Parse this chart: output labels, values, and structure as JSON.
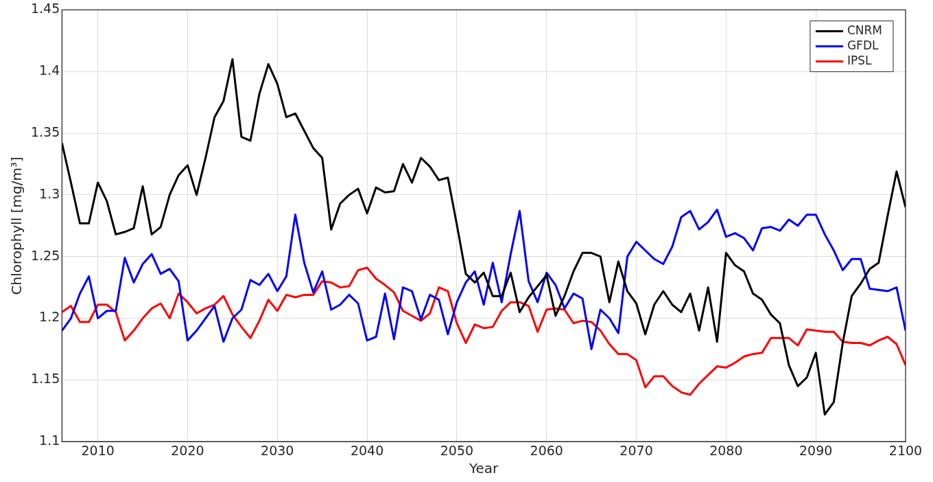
{
  "chart_data": {
    "type": "line",
    "xlabel": "Year",
    "ylabel": "Chlorophyll [mg/m³]",
    "x": [
      2006,
      2007,
      2008,
      2009,
      2010,
      2011,
      2012,
      2013,
      2014,
      2015,
      2016,
      2017,
      2018,
      2019,
      2020,
      2021,
      2022,
      2023,
      2024,
      2025,
      2026,
      2027,
      2028,
      2029,
      2030,
      2031,
      2032,
      2033,
      2034,
      2035,
      2036,
      2037,
      2038,
      2039,
      2040,
      2041,
      2042,
      2043,
      2044,
      2045,
      2046,
      2047,
      2048,
      2049,
      2050,
      2051,
      2052,
      2053,
      2054,
      2055,
      2056,
      2057,
      2058,
      2059,
      2060,
      2061,
      2062,
      2063,
      2064,
      2065,
      2066,
      2067,
      2068,
      2069,
      2070,
      2071,
      2072,
      2073,
      2074,
      2075,
      2076,
      2077,
      2078,
      2079,
      2080,
      2081,
      2082,
      2083,
      2084,
      2085,
      2086,
      2087,
      2088,
      2089,
      2090,
      2091,
      2092,
      2093,
      2094,
      2095,
      2096,
      2097,
      2098,
      2099,
      2100
    ],
    "series": [
      {
        "name": "CNRM",
        "color": "#000000",
        "values": [
          1.342,
          1.31,
          1.277,
          1.277,
          1.31,
          1.295,
          1.268,
          1.27,
          1.273,
          1.307,
          1.268,
          1.274,
          1.3,
          1.316,
          1.324,
          1.3,
          1.33,
          1.363,
          1.376,
          1.41,
          1.347,
          1.344,
          1.382,
          1.406,
          1.39,
          1.363,
          1.366,
          1.352,
          1.338,
          1.33,
          1.272,
          1.293,
          1.3,
          1.305,
          1.285,
          1.306,
          1.302,
          1.303,
          1.325,
          1.31,
          1.33,
          1.323,
          1.312,
          1.314,
          1.276,
          1.236,
          1.229,
          1.237,
          1.218,
          1.218,
          1.237,
          1.205,
          1.217,
          1.226,
          1.235,
          1.202,
          1.218,
          1.238,
          1.253,
          1.253,
          1.25,
          1.213,
          1.246,
          1.222,
          1.212,
          1.187,
          1.211,
          1.222,
          1.211,
          1.205,
          1.22,
          1.19,
          1.225,
          1.181,
          1.253,
          1.243,
          1.238,
          1.22,
          1.215,
          1.203,
          1.196,
          1.162,
          1.145,
          1.152,
          1.172,
          1.122,
          1.132,
          1.18,
          1.218,
          1.228,
          1.24,
          1.245,
          1.283,
          1.319,
          1.29
        ]
      },
      {
        "name": "GFDL",
        "color": "#0000ff",
        "values": [
          1.19,
          1.2,
          1.22,
          1.234,
          1.2,
          1.206,
          1.206,
          1.249,
          1.229,
          1.244,
          1.252,
          1.236,
          1.24,
          1.23,
          1.182,
          1.19,
          1.2,
          1.21,
          1.181,
          1.2,
          1.207,
          1.231,
          1.227,
          1.236,
          1.222,
          1.234,
          1.284,
          1.245,
          1.221,
          1.238,
          1.207,
          1.211,
          1.219,
          1.212,
          1.182,
          1.185,
          1.22,
          1.183,
          1.225,
          1.222,
          1.199,
          1.219,
          1.215,
          1.187,
          1.213,
          1.229,
          1.238,
          1.211,
          1.245,
          1.213,
          1.252,
          1.287,
          1.23,
          1.213,
          1.237,
          1.227,
          1.208,
          1.22,
          1.216,
          1.175,
          1.207,
          1.2,
          1.188,
          1.25,
          1.262,
          1.255,
          1.248,
          1.244,
          1.258,
          1.282,
          1.287,
          1.272,
          1.278,
          1.288,
          1.266,
          1.269,
          1.265,
          1.255,
          1.273,
          1.274,
          1.271,
          1.28,
          1.275,
          1.284,
          1.284,
          1.268,
          1.255,
          1.239,
          1.248,
          1.248,
          1.224,
          1.223,
          1.222,
          1.225,
          1.19
        ]
      },
      {
        "name": "IPSL",
        "color": "#ff0000",
        "values": [
          1.205,
          1.21,
          1.197,
          1.197,
          1.211,
          1.211,
          1.205,
          1.182,
          1.19,
          1.2,
          1.208,
          1.212,
          1.2,
          1.22,
          1.213,
          1.204,
          1.208,
          1.211,
          1.218,
          1.203,
          1.193,
          1.184,
          1.198,
          1.215,
          1.206,
          1.219,
          1.217,
          1.219,
          1.219,
          1.23,
          1.229,
          1.225,
          1.226,
          1.239,
          1.241,
          1.232,
          1.227,
          1.221,
          1.206,
          1.202,
          1.198,
          1.204,
          1.225,
          1.222,
          1.196,
          1.18,
          1.195,
          1.192,
          1.193,
          1.206,
          1.213,
          1.213,
          1.21,
          1.189,
          1.207,
          1.208,
          1.207,
          1.196,
          1.198,
          1.197,
          1.19,
          1.179,
          1.171,
          1.171,
          1.166,
          1.144,
          1.153,
          1.153,
          1.145,
          1.14,
          1.138,
          1.147,
          1.154,
          1.161,
          1.16,
          1.164,
          1.169,
          1.171,
          1.172,
          1.184,
          1.184,
          1.184,
          1.178,
          1.191,
          1.19,
          1.189,
          1.189,
          1.181,
          1.18,
          1.18,
          1.178,
          1.182,
          1.185,
          1.179,
          1.162
        ]
      }
    ],
    "xlim": [
      2006,
      2100
    ],
    "xticks": [
      2010,
      2020,
      2030,
      2040,
      2050,
      2060,
      2070,
      2080,
      2090,
      2100
    ],
    "ylim": [
      1.1,
      1.45
    ],
    "yticks": [
      1.1,
      1.15,
      1.2,
      1.25,
      1.3,
      1.35,
      1.4,
      1.45
    ],
    "grid": true,
    "legend": "top right",
    "marker": "none",
    "line_style": "solid"
  }
}
